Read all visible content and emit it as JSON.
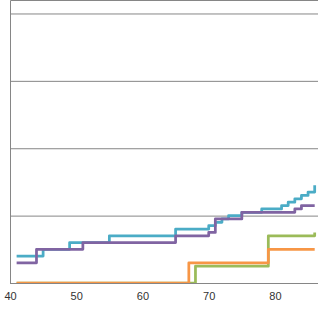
{
  "chart_data": {
    "type": "line",
    "line_style": "step",
    "grid": true,
    "tick_labels": "x",
    "x": [
      41,
      42,
      43,
      44,
      45,
      46,
      47,
      48,
      49,
      50,
      51,
      52,
      53,
      54,
      55,
      56,
      57,
      58,
      59,
      60,
      61,
      62,
      63,
      64,
      65,
      66,
      67,
      68,
      69,
      70,
      71,
      72,
      73,
      74,
      75,
      76,
      77,
      78,
      79,
      80,
      81,
      82,
      83,
      84,
      85,
      86
    ],
    "xlim": [
      40,
      86.5
    ],
    "xticks": [
      40,
      50,
      60,
      70,
      80
    ],
    "ylim": [
      0,
      84
    ],
    "yticks": [
      0,
      20,
      40,
      60,
      80
    ],
    "series": [
      {
        "color": "#4bacc6",
        "values": [
          8,
          8,
          8,
          8,
          10,
          10,
          10,
          10,
          12,
          12,
          12,
          12,
          12,
          12,
          14,
          14,
          14,
          14,
          14,
          14,
          14,
          14,
          14,
          14,
          16,
          16,
          16,
          16,
          16,
          17,
          18,
          19,
          20,
          20,
          21,
          21,
          21,
          22,
          22,
          22,
          23,
          24,
          25,
          26,
          27,
          29
        ]
      },
      {
        "color": "#8064a2",
        "values": [
          6,
          6,
          6,
          10,
          10,
          10,
          10,
          10,
          10,
          10,
          12,
          12,
          12,
          12,
          12,
          12,
          12,
          12,
          12,
          12,
          12,
          12,
          12,
          12,
          14,
          14,
          14,
          14,
          14,
          15,
          19,
          19,
          19,
          19,
          21,
          21,
          21,
          21,
          21,
          21,
          21,
          21,
          22,
          23,
          23,
          23
        ]
      },
      {
        "color": "#9bbb59",
        "values": [
          0,
          0,
          0,
          0,
          0,
          0,
          0,
          0,
          0,
          0,
          0,
          0,
          0,
          0,
          0,
          0,
          0,
          0,
          0,
          0,
          0,
          0,
          0,
          0,
          0,
          0,
          0,
          5,
          5,
          5,
          5,
          5,
          5,
          5,
          5,
          5,
          5,
          5,
          14,
          14,
          14,
          14,
          14,
          14,
          14,
          15
        ]
      },
      {
        "color": "#f79646",
        "values": [
          0,
          0,
          0,
          0,
          0,
          0,
          0,
          0,
          0,
          0,
          0,
          0,
          0,
          0,
          0,
          0,
          0,
          0,
          0,
          0,
          0,
          0,
          0,
          0,
          0,
          0,
          6,
          6,
          6,
          6,
          6,
          6,
          6,
          6,
          6,
          6,
          6,
          6,
          10,
          10,
          10,
          10,
          10,
          10,
          10,
          10
        ]
      }
    ]
  }
}
